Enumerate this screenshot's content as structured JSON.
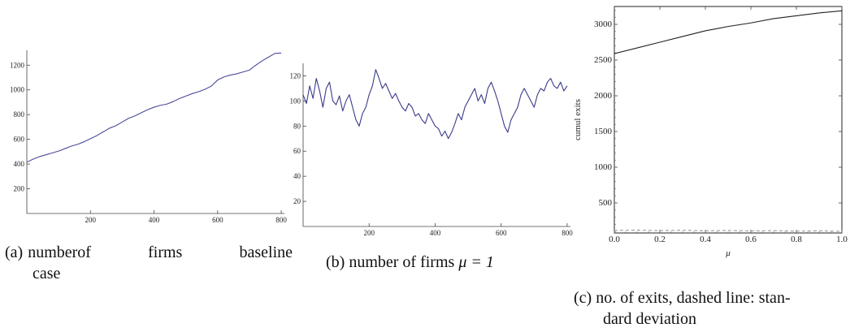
{
  "captions": {
    "a": {
      "tag": "(a)",
      "line1": "numberof firms baseline",
      "line2": "case"
    },
    "b": {
      "tag": "(b)",
      "text": "number of firms",
      "math": "μ = 1"
    },
    "c": {
      "tag": "(c)",
      "line1": "no. of exits, dashed line: stan-",
      "line2": "dard deviation"
    }
  },
  "chart_data": [
    {
      "id": "a",
      "type": "line",
      "xlim": [
        0,
        810
      ],
      "ylim": [
        0,
        1320
      ],
      "xticks": [
        200,
        400,
        600,
        800
      ],
      "yticks": [
        200,
        400,
        600,
        800,
        1000,
        1200
      ],
      "series": [
        {
          "color": "#4a4a9a",
          "style": "solid",
          "x": [
            0,
            20,
            40,
            60,
            80,
            100,
            120,
            140,
            160,
            180,
            200,
            220,
            240,
            260,
            280,
            300,
            320,
            340,
            360,
            380,
            400,
            420,
            440,
            460,
            480,
            500,
            520,
            540,
            560,
            580,
            600,
            620,
            640,
            660,
            680,
            700,
            720,
            740,
            760,
            780,
            800
          ],
          "y": [
            415,
            440,
            460,
            475,
            490,
            505,
            525,
            545,
            560,
            580,
            605,
            630,
            660,
            690,
            710,
            740,
            770,
            790,
            815,
            840,
            860,
            875,
            885,
            905,
            930,
            950,
            970,
            985,
            1005,
            1030,
            1080,
            1105,
            1120,
            1130,
            1145,
            1160,
            1200,
            1235,
            1265,
            1295,
            1298
          ]
        }
      ]
    },
    {
      "id": "b",
      "type": "line",
      "xlim": [
        0,
        810
      ],
      "ylim": [
        0,
        130
      ],
      "xticks": [
        200,
        400,
        600,
        800
      ],
      "yticks": [
        20,
        40,
        60,
        80,
        100,
        120
      ],
      "series": [
        {
          "color": "#3a3a8a",
          "style": "solid",
          "x": [
            0,
            10,
            20,
            30,
            40,
            50,
            60,
            70,
            80,
            90,
            100,
            110,
            120,
            130,
            140,
            150,
            160,
            170,
            180,
            190,
            200,
            210,
            220,
            230,
            240,
            250,
            260,
            270,
            280,
            290,
            300,
            310,
            320,
            330,
            340,
            350,
            360,
            370,
            380,
            390,
            400,
            410,
            420,
            430,
            440,
            450,
            460,
            470,
            480,
            490,
            500,
            510,
            520,
            530,
            540,
            550,
            560,
            570,
            580,
            590,
            600,
            610,
            620,
            630,
            640,
            650,
            660,
            670,
            680,
            690,
            700,
            710,
            720,
            730,
            740,
            750,
            760,
            770,
            780,
            790,
            800
          ],
          "y": [
            105,
            98,
            112,
            102,
            118,
            108,
            95,
            110,
            115,
            100,
            97,
            104,
            92,
            100,
            105,
            95,
            85,
            80,
            90,
            95,
            105,
            112,
            125,
            118,
            110,
            114,
            108,
            102,
            106,
            100,
            95,
            92,
            98,
            95,
            88,
            90,
            85,
            82,
            90,
            85,
            80,
            78,
            72,
            76,
            70,
            75,
            82,
            90,
            85,
            95,
            100,
            105,
            110,
            100,
            105,
            98,
            110,
            115,
            108,
            100,
            90,
            80,
            75,
            85,
            90,
            95,
            105,
            110,
            105,
            100,
            95,
            105,
            110,
            108,
            115,
            118,
            112,
            110,
            115,
            108,
            112
          ]
        }
      ]
    },
    {
      "id": "c",
      "type": "line",
      "xlabel": "μ",
      "ylabel": "cumul exits",
      "xlim": [
        0,
        1
      ],
      "ylim": [
        80,
        3250
      ],
      "xticks": [
        0.0,
        0.2,
        0.4,
        0.6,
        0.8,
        1.0
      ],
      "xtick_labels": [
        "0.0",
        "0.2",
        "0.4",
        "0.6",
        "0.8",
        "1.0"
      ],
      "yticks": [
        500,
        1000,
        1500,
        2000,
        2500,
        3000
      ],
      "series": [
        {
          "color": "#222222",
          "style": "solid",
          "x": [
            0.0,
            0.1,
            0.2,
            0.3,
            0.4,
            0.5,
            0.6,
            0.7,
            0.8,
            0.9,
            1.0
          ],
          "y": [
            2590,
            2670,
            2750,
            2830,
            2910,
            2970,
            3020,
            3080,
            3120,
            3160,
            3190
          ]
        },
        {
          "color": "#999999",
          "style": "dashed",
          "x": [
            0.0,
            0.1,
            0.2,
            0.3,
            0.4,
            0.5,
            0.6,
            0.7,
            0.8,
            0.9,
            1.0
          ],
          "y": [
            115,
            120,
            112,
            118,
            110,
            115,
            108,
            113,
            105,
            110,
            102
          ]
        }
      ]
    }
  ]
}
